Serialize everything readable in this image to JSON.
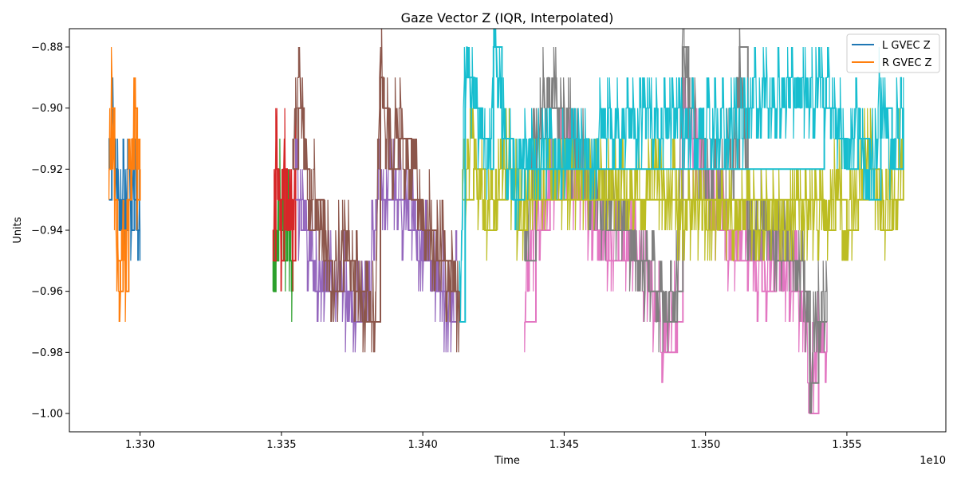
{
  "chart_data": {
    "type": "line",
    "title": "Gaze Vector Z (IQR, Interpolated)",
    "xlabel": "Time",
    "ylabel": "Units",
    "x_offset_label": "1e10",
    "xlim": [
      1.3275,
      1.3585
    ],
    "ylim": [
      -1.006,
      -0.874
    ],
    "x_ticks": [
      1.33,
      1.335,
      1.34,
      1.345,
      1.35,
      1.355
    ],
    "x_tick_labels": [
      "1.330",
      "1.335",
      "1.340",
      "1.345",
      "1.350",
      "1.355"
    ],
    "y_ticks": [
      -0.88,
      -0.9,
      -0.92,
      -0.94,
      -0.96,
      -0.98,
      -1.0
    ],
    "y_tick_labels": [
      "−0.88",
      "−0.90",
      "−0.92",
      "−0.94",
      "−0.96",
      "−0.98",
      "−1.00"
    ],
    "grid": false,
    "legend_position": "top-right",
    "legend": [
      {
        "label": "L GVEC Z",
        "color": "#1f77b4"
      },
      {
        "label": "R GVEC Z",
        "color": "#ff7f0e"
      }
    ],
    "series": [
      {
        "color": "#1f77b4",
        "x": [
          1.3289,
          1.329,
          1.3291,
          1.3292,
          1.3293,
          1.3294,
          1.3295,
          1.3296,
          1.3297,
          1.3298,
          1.3299,
          1.33
        ],
        "values": [
          -0.93,
          -0.91,
          -0.92,
          -0.93,
          -0.94,
          -0.93,
          -0.94,
          -0.93,
          -0.94,
          -0.93,
          -0.94,
          -0.94
        ],
        "band": [
          -0.94,
          -0.93
        ]
      },
      {
        "color": "#ff7f0e",
        "x": [
          1.3289,
          1.329,
          1.3291,
          1.3292,
          1.3293,
          1.3294,
          1.3295,
          1.3296,
          1.3297,
          1.3298,
          1.3299,
          1.33
        ],
        "values": [
          -0.92,
          -0.9,
          -0.93,
          -0.95,
          -0.96,
          -0.94,
          -0.96,
          -0.93,
          -0.92,
          -0.9,
          -0.93,
          -0.92
        ],
        "band": [
          -0.94,
          -0.92
        ]
      },
      {
        "color": "#2ca02c",
        "x": [
          1.3347,
          1.3348,
          1.3349,
          1.335,
          1.3351,
          1.3352,
          1.3353,
          1.3354
        ],
        "values": [
          -0.96,
          -0.95,
          -0.93,
          -0.94,
          -0.95,
          -0.94,
          -0.95,
          -0.96
        ],
        "band": [
          -0.95,
          -0.94
        ]
      },
      {
        "color": "#d62728",
        "x": [
          1.3347,
          1.3348,
          1.3349,
          1.335,
          1.3351,
          1.3352,
          1.3353,
          1.3354,
          1.3355
        ],
        "values": [
          -0.95,
          -0.92,
          -0.93,
          -0.95,
          -0.92,
          -0.94,
          -0.93,
          -0.95,
          -0.92
        ],
        "band": [
          -0.94,
          -0.93
        ]
      },
      {
        "color": "#9467bd",
        "x": [
          1.3355,
          1.3357,
          1.336,
          1.3362,
          1.3365,
          1.337,
          1.3375,
          1.338,
          1.3385,
          1.339,
          1.3395,
          1.34,
          1.3405,
          1.341,
          1.3412
        ],
        "values": [
          -0.93,
          -0.94,
          -0.95,
          -0.96,
          -0.96,
          -0.96,
          -0.97,
          -0.97,
          -0.93,
          -0.93,
          -0.94,
          -0.95,
          -0.96,
          -0.97,
          -0.96
        ],
        "band": [
          -0.96,
          -0.95
        ]
      },
      {
        "color": "#8c564b",
        "x": [
          1.3354,
          1.3356,
          1.3358,
          1.336,
          1.3362,
          1.3365,
          1.3368,
          1.3372,
          1.3376,
          1.338,
          1.3383,
          1.3385,
          1.3386,
          1.3388,
          1.3392,
          1.3396,
          1.34,
          1.3405,
          1.341,
          1.3413
        ],
        "values": [
          -0.92,
          -0.9,
          -0.92,
          -0.94,
          -0.93,
          -0.95,
          -0.96,
          -0.95,
          -0.96,
          -0.97,
          -0.97,
          -0.89,
          -0.9,
          -0.92,
          -0.91,
          -0.93,
          -0.94,
          -0.95,
          -0.96,
          -0.97
        ],
        "band": [
          -0.95,
          -0.93
        ]
      },
      {
        "color": "#e377c2",
        "x": [
          1.3436,
          1.344,
          1.3445,
          1.345,
          1.3455,
          1.346,
          1.3465,
          1.347,
          1.3475,
          1.348,
          1.3485,
          1.349,
          1.3492,
          1.3494,
          1.3496,
          1.35,
          1.3505,
          1.351,
          1.3515,
          1.352,
          1.3525,
          1.353,
          1.3535,
          1.3537,
          1.354,
          1.3543
        ],
        "values": [
          -0.97,
          -0.94,
          -0.93,
          -0.92,
          -0.93,
          -0.94,
          -0.95,
          -0.95,
          -0.95,
          -0.96,
          -0.98,
          -0.97,
          -0.9,
          -0.91,
          -0.92,
          -0.93,
          -0.94,
          -0.95,
          -0.95,
          -0.96,
          -0.95,
          -0.96,
          -0.97,
          -1.0,
          -0.98,
          -0.98
        ],
        "band": [
          -0.95,
          -0.93
        ]
      },
      {
        "color": "#7f7f7f",
        "x": [
          1.3436,
          1.344,
          1.3445,
          1.345,
          1.3455,
          1.346,
          1.3465,
          1.347,
          1.3475,
          1.348,
          1.3485,
          1.349,
          1.3492,
          1.3494,
          1.3496,
          1.35,
          1.3505,
          1.351,
          1.3512,
          1.3515,
          1.352,
          1.3525,
          1.353,
          1.3535,
          1.3537,
          1.354,
          1.3543
        ],
        "values": [
          -0.95,
          -0.91,
          -0.9,
          -0.91,
          -0.92,
          -0.93,
          -0.94,
          -0.94,
          -0.95,
          -0.96,
          -0.97,
          -0.96,
          -0.88,
          -0.9,
          -0.91,
          -0.93,
          -0.93,
          -0.92,
          -0.88,
          -0.94,
          -0.94,
          -0.95,
          -0.95,
          -0.96,
          -0.99,
          -0.97,
          -0.97
        ],
        "band": [
          -0.94,
          -0.92
        ]
      },
      {
        "color": "#bcbd22",
        "x": [
          1.3414,
          1.3418,
          1.3422,
          1.3426,
          1.343,
          1.3434,
          1.3437,
          1.3542,
          1.3546,
          1.355,
          1.3554,
          1.3558,
          1.3562,
          1.3566,
          1.357
        ],
        "values": [
          -0.93,
          -0.92,
          -0.94,
          -0.93,
          -0.92,
          -0.94,
          -0.93,
          -0.94,
          -0.93,
          -0.94,
          -0.93,
          -0.92,
          -0.94,
          -0.93,
          -0.92
        ],
        "band": [
          -0.94,
          -0.93
        ]
      },
      {
        "color": "#17becf",
        "x": [
          1.3413,
          1.3415,
          1.3418,
          1.3421,
          1.3424,
          1.3425,
          1.3428,
          1.3432,
          1.3436,
          1.3542,
          1.3546,
          1.355,
          1.3554,
          1.3558,
          1.3562,
          1.3566,
          1.357
        ],
        "values": [
          -0.97,
          -0.89,
          -0.9,
          -0.91,
          -0.92,
          -0.88,
          -0.91,
          -0.93,
          -0.92,
          -0.9,
          -0.91,
          -0.92,
          -0.91,
          -0.93,
          -0.9,
          -0.92,
          -0.9
        ],
        "band": [
          -0.93,
          -0.91
        ]
      }
    ]
  }
}
